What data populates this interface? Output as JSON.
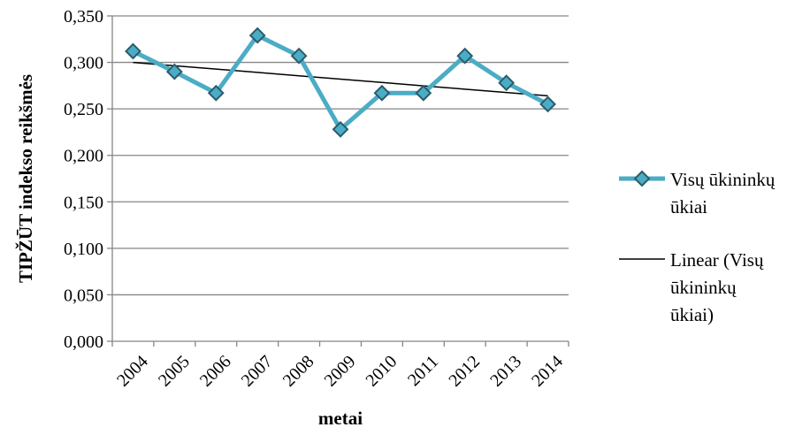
{
  "chart_data": {
    "type": "line",
    "xlabel": "metai",
    "ylabel": "TIPŽŪT indekso reikšmės",
    "x": [
      "2004",
      "2005",
      "2006",
      "2007",
      "2008",
      "2009",
      "2010",
      "2011",
      "2012",
      "2013",
      "2014"
    ],
    "ylim": [
      0,
      0.35
    ],
    "yticks": [
      "0,000",
      "0,050",
      "0,100",
      "0,150",
      "0,200",
      "0,250",
      "0,300",
      "0,350"
    ],
    "grid": true,
    "legend_position": "right",
    "series": [
      {
        "name": "Visų ūkininkų ūkiai",
        "values": [
          0.312,
          0.29,
          0.267,
          0.329,
          0.307,
          0.228,
          0.267,
          0.267,
          0.307,
          0.278,
          0.255
        ],
        "color": "#4BACC6",
        "marker": "diamond",
        "marker_color": "#4BACC6"
      },
      {
        "name": "Linear (Visų ūkininkų ūkiai)",
        "trendline": true,
        "values": [
          0.3,
          0.2964,
          0.2928,
          0.2892,
          0.2856,
          0.282,
          0.2784,
          0.2748,
          0.2712,
          0.2676,
          0.264
        ],
        "color": "#000000"
      }
    ],
    "legend": [
      {
        "lines": [
          "Visų ūkininkų",
          "ūkiai"
        ]
      },
      {
        "lines": [
          "Linear (Visų",
          "ūkininkų",
          "ūkiai)"
        ]
      }
    ]
  }
}
